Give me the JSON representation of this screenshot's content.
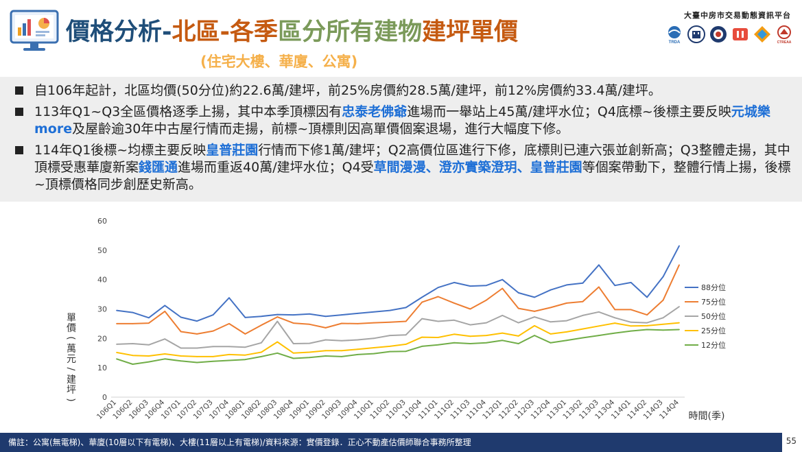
{
  "header": {
    "title_part1": "價格分析-",
    "title_part2": "北區-各季",
    "title_part3": "區分所有建物",
    "title_part4": "建坪單價",
    "subtitle": "(住宅大樓、華廈、公寓)",
    "platform_name": "大臺中房市交易動態資訊平台",
    "logos": [
      "TRDA",
      "logo-2",
      "logo-3",
      "logo-4",
      "logo-5",
      "CTREAA"
    ]
  },
  "bullets": [
    {
      "segments": [
        {
          "text": "自106年起計，北區均價(50分位)約22.6萬/建坪，前25%房價約28.5萬/建坪，前12%房價約33.4萬/建坪。",
          "hl": false
        }
      ]
    },
    {
      "segments": [
        {
          "text": "113年Q1~Q3全區價格逐季上揚，其中本季頂標因有",
          "hl": false
        },
        {
          "text": "忠泰老佛爺",
          "hl": true
        },
        {
          "text": "進場而一舉站上45萬/建坪水位；Q4底標~後標主要反映",
          "hl": false
        },
        {
          "text": "元城樂more",
          "hl": true
        },
        {
          "text": "及屋齡逾30年中古屋行情而走揚，前標~頂標則因高單價個案退場，進行大幅度下修。",
          "hl": false
        }
      ]
    },
    {
      "segments": [
        {
          "text": "114年Q1後標~均標主要反映",
          "hl": false
        },
        {
          "text": "皇普莊園",
          "hl": true
        },
        {
          "text": "行情而下修1萬/建坪；Q2高價位區進行下修，底標則已連六張並創新高；Q3整體走揚，其中頂標受惠華廈新案",
          "hl": false
        },
        {
          "text": "錢匯通",
          "hl": true
        },
        {
          "text": "進場而重返40萬/建坪水位；Q4受",
          "hl": false
        },
        {
          "text": "草間漫漫、澄亦實築澄玥、皇普莊園",
          "hl": true
        },
        {
          "text": "等個案帶動下，整體行情上揚，後標~頂標價格同步創歷史新高。",
          "hl": false
        }
      ]
    }
  ],
  "chart_data": {
    "type": "line",
    "ylabel": "單價(萬元/建坪)",
    "xlabel": "時間(季)",
    "ylim": [
      0,
      60
    ],
    "yticks": [
      0,
      10,
      20,
      30,
      40,
      50,
      60
    ],
    "grid": false,
    "legend": "right",
    "categories": [
      "106Q1",
      "106Q2",
      "106Q3",
      "106Q4",
      "107Q1",
      "107Q2",
      "107Q3",
      "107Q4",
      "108Q1",
      "108Q2",
      "108Q3",
      "108Q4",
      "109Q1",
      "109Q2",
      "109Q3",
      "109Q4",
      "110Q1",
      "110Q2",
      "110Q3",
      "110Q4",
      "111Q1",
      "111Q2",
      "111Q3",
      "111Q4",
      "112Q1",
      "112Q2",
      "112Q3",
      "112Q4",
      "113Q1",
      "113Q2",
      "113Q3",
      "113Q4",
      "114Q1",
      "114Q2",
      "114Q3",
      "114Q4"
    ],
    "series": [
      {
        "name": "88分位",
        "color": "#4472c4",
        "values": [
          29.5,
          28.8,
          27.0,
          31.2,
          27.2,
          25.9,
          28.0,
          33.8,
          27.1,
          27.5,
          28.1,
          28.0,
          28.3,
          27.5,
          28.0,
          28.5,
          29.0,
          29.5,
          30.5,
          34.0,
          37.3,
          39.0,
          37.8,
          38.0,
          40.0,
          35.5,
          34.0,
          36.5,
          38.2,
          38.8,
          45.0,
          38.0,
          39.0,
          34.0,
          41.0,
          51.5
        ]
      },
      {
        "name": "75分位",
        "color": "#ed7d31",
        "values": [
          25.0,
          25.0,
          25.2,
          29.2,
          22.3,
          21.5,
          22.5,
          25.0,
          21.5,
          24.5,
          27.3,
          25.2,
          24.8,
          23.6,
          25.1,
          25.0,
          25.3,
          25.5,
          25.8,
          32.3,
          34.2,
          32.0,
          30.0,
          33.0,
          37.0,
          30.2,
          29.2,
          30.5,
          32.0,
          32.5,
          37.5,
          29.8,
          29.8,
          28.0,
          33.0,
          45.0
        ]
      },
      {
        "name": "50分位",
        "color": "#a5a5a5",
        "values": [
          18.0,
          18.2,
          17.8,
          19.8,
          16.7,
          16.7,
          17.2,
          17.2,
          17.0,
          18.5,
          25.8,
          18.2,
          18.3,
          19.5,
          19.2,
          19.5,
          20.0,
          21.0,
          21.2,
          26.7,
          25.8,
          26.2,
          24.6,
          25.3,
          27.8,
          25.3,
          27.3,
          25.6,
          26.0,
          27.8,
          29.0,
          27.0,
          25.5,
          25.3,
          27.0,
          30.8
        ]
      },
      {
        "name": "25分位",
        "color": "#ffc000",
        "values": [
          15.2,
          14.2,
          14.0,
          14.7,
          14.0,
          13.8,
          13.8,
          14.5,
          14.3,
          15.3,
          18.8,
          15.0,
          15.3,
          15.8,
          15.8,
          16.3,
          16.8,
          17.3,
          18.0,
          20.4,
          20.3,
          21.4,
          20.7,
          21.0,
          21.8,
          20.8,
          24.3,
          21.5,
          22.2,
          23.2,
          24.2,
          25.2,
          24.2,
          24.3,
          24.8,
          25.3
        ]
      },
      {
        "name": "12分位",
        "color": "#70ad47",
        "values": [
          13.0,
          11.2,
          12.0,
          13.0,
          12.3,
          11.8,
          12.2,
          12.5,
          12.8,
          13.8,
          15.0,
          13.2,
          13.5,
          14.0,
          13.8,
          14.5,
          14.8,
          15.5,
          15.6,
          17.3,
          17.8,
          18.5,
          18.2,
          18.5,
          19.3,
          18.2,
          21.0,
          18.5,
          19.3,
          20.2,
          21.0,
          21.8,
          22.5,
          23.0,
          22.8,
          23.0
        ]
      }
    ]
  },
  "footer": {
    "note": "備註：公寓(無電梯)、華廈(10層以下有電梯)、大樓(11層以上有電梯)/資料來源：實價登錄．正心不動產估價師聯合事務所整理",
    "page_number": "55"
  }
}
